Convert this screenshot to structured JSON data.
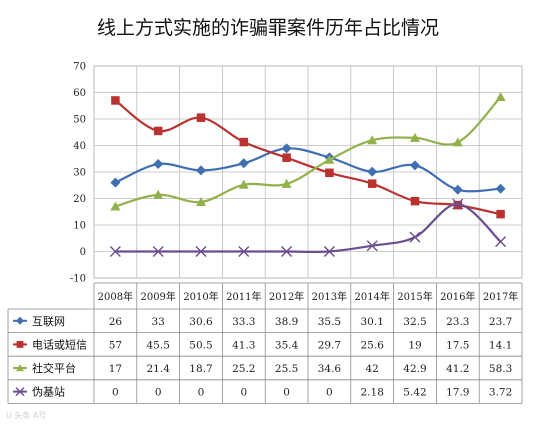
{
  "chart_data": {
    "type": "line",
    "title": "线上方式实施的诈骗罪案件历年占比情况",
    "categories": [
      "2008年",
      "2009年",
      "2010年",
      "2011年",
      "2012年",
      "2013年",
      "2014年",
      "2015年",
      "2016年",
      "2017年"
    ],
    "ylim": [
      -10,
      70
    ],
    "yticks": [
      "-10",
      "0",
      "10",
      "20",
      "30",
      "40",
      "50",
      "60",
      "70"
    ],
    "grid": true,
    "legend": "table-below",
    "series": [
      {
        "name": "互联网",
        "color": "#3f6fb0",
        "marker": "diamond",
        "values": [
          26,
          33,
          30.6,
          33.3,
          38.9,
          35.5,
          30.1,
          32.5,
          23.3,
          23.7
        ],
        "labels": [
          "26",
          "33",
          "30.6",
          "33.3",
          "38.9",
          "35.5",
          "30.1",
          "32.5",
          "23.3",
          "23.7"
        ]
      },
      {
        "name": "电话或短信",
        "color": "#b9322f",
        "marker": "square",
        "values": [
          57,
          45.5,
          50.5,
          41.3,
          35.4,
          29.7,
          25.6,
          19,
          17.5,
          14.1
        ],
        "labels": [
          "57",
          "45.5",
          "50.5",
          "41.3",
          "35.4",
          "29.7",
          "25.6",
          "19",
          "17.5",
          "14.1"
        ]
      },
      {
        "name": "社交平台",
        "color": "#92b14b",
        "marker": "triangle",
        "values": [
          17,
          21.4,
          18.7,
          25.2,
          25.5,
          34.6,
          42,
          42.9,
          41.2,
          58.3
        ],
        "labels": [
          "17",
          "21.4",
          "18.7",
          "25.2",
          "25.5",
          "34.6",
          "42",
          "42.9",
          "41.2",
          "58.3"
        ]
      },
      {
        "name": "伪基站",
        "color": "#6b4e8f",
        "marker": "x",
        "values": [
          0,
          0,
          0,
          0,
          0,
          0,
          2.18,
          5.42,
          17.9,
          3.72
        ],
        "labels": [
          "0",
          "0",
          "0",
          "0",
          "0",
          "0",
          "2.18",
          "5.42",
          "17.9",
          "3.72"
        ]
      }
    ]
  },
  "watermark": "U 头条 A号"
}
